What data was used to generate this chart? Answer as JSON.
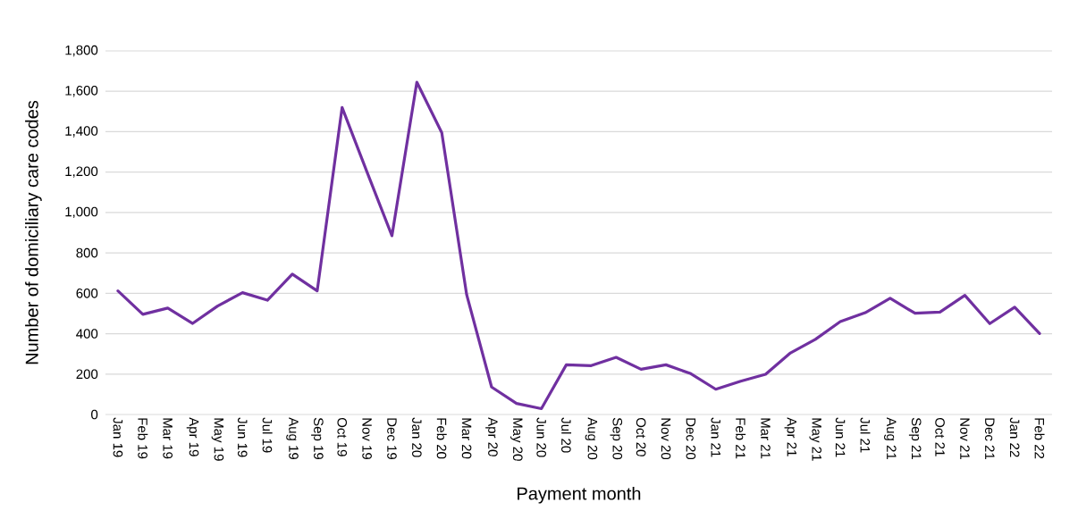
{
  "chart_data": {
    "type": "line",
    "xlabel": "Payment month",
    "ylabel": "Number of domiciliary care codes",
    "categories": [
      "Jan 19",
      "Feb 19",
      "Mar 19",
      "Apr 19",
      "May 19",
      "Jun 19",
      "Jul 19",
      "Aug 19",
      "Sep 19",
      "Oct 19",
      "Nov 19",
      "Dec 19",
      "Jan 20",
      "Feb 20",
      "Mar 20",
      "Apr 20",
      "May 20",
      "Jun 20",
      "Jul 20",
      "Aug 20",
      "Sep 20",
      "Oct 20",
      "Nov 20",
      "Dec 20",
      "Jan 21",
      "Feb 21",
      "Mar 21",
      "Apr 21",
      "May 21",
      "Jun 21",
      "Jul 21",
      "Aug 21",
      "Sep 21",
      "Oct 21",
      "Nov 21",
      "Dec 21",
      "Jan 22",
      "Feb 22"
    ],
    "series": [
      {
        "color": "#7030a0",
        "values": [
          612,
          496,
          527,
          451,
          537,
          603,
          566,
          695,
          612,
          1520,
          1200,
          885,
          1645,
          1395,
          593,
          136,
          55,
          29,
          246,
          242,
          283,
          224,
          246,
          202,
          125,
          165,
          199,
          305,
          372,
          460,
          504,
          575,
          501,
          507,
          590,
          450,
          531,
          401
        ]
      }
    ],
    "ylim": [
      0,
      1800
    ],
    "yticks": [
      0,
      200,
      400,
      600,
      800,
      {
        "value": 1000,
        "label": "1,000"
      },
      {
        "value": 1200,
        "label": "1,200"
      },
      {
        "value": 1400,
        "label": "1,400"
      },
      {
        "value": 1600,
        "label": "1,600"
      },
      {
        "value": 1800,
        "label": "1,800"
      }
    ],
    "grid": "y",
    "marker": "none",
    "line_style": "solid"
  }
}
